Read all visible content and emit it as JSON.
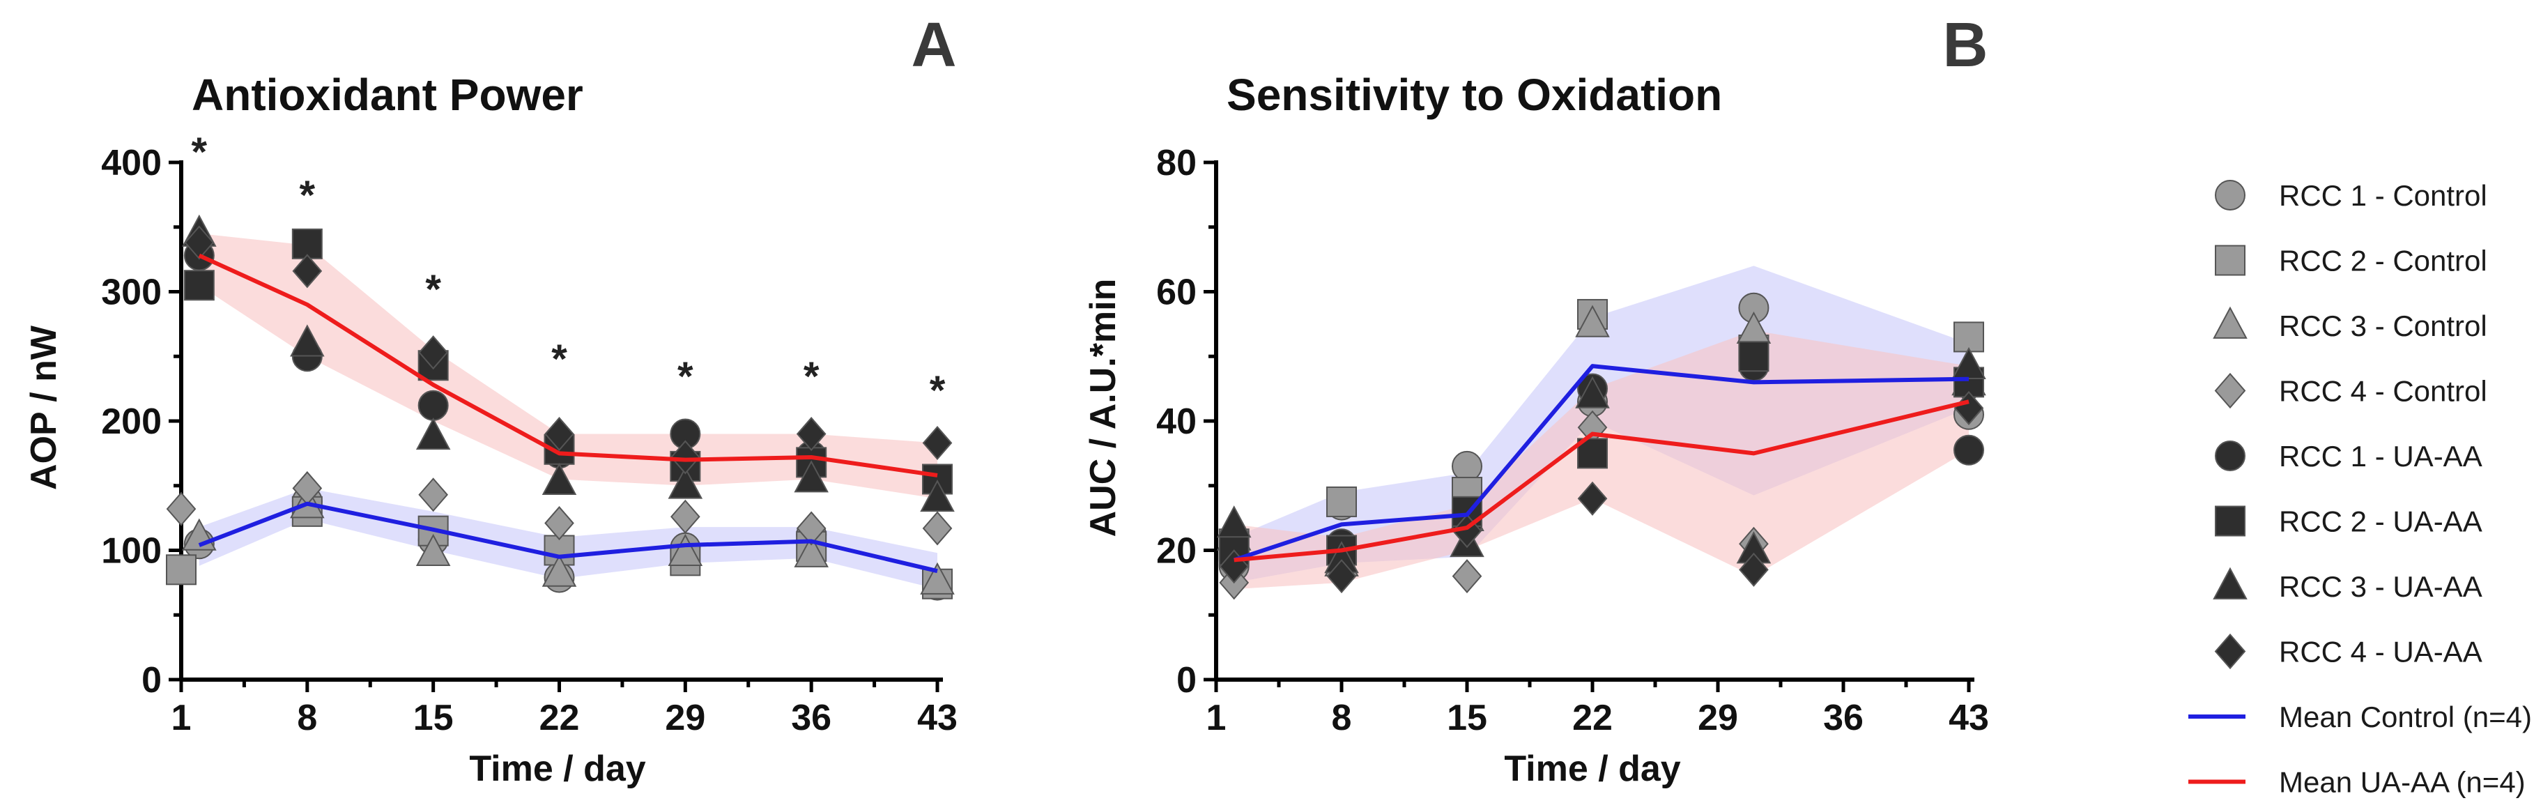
{
  "chart_data": [
    {
      "type": "line",
      "panel_label": "A",
      "title": "Antioxidant Power",
      "xlabel": "Time / day",
      "ylabel": "AOP / nW",
      "xlim": [
        1,
        43
      ],
      "ylim": [
        0,
        400
      ],
      "xticks": [
        1,
        8,
        15,
        22,
        29,
        36,
        43
      ],
      "yticks": [
        0,
        100,
        200,
        300,
        400
      ],
      "significance": [
        {
          "x": 2,
          "label": "*"
        },
        {
          "x": 8,
          "label": "*"
        },
        {
          "x": 15,
          "label": "*"
        },
        {
          "x": 22,
          "label": "*"
        },
        {
          "x": 29,
          "label": "*"
        },
        {
          "x": 36,
          "label": "*"
        },
        {
          "x": 43,
          "label": "*"
        }
      ],
      "x": [
        2,
        8,
        15,
        22,
        29,
        36,
        43
      ],
      "series": [
        {
          "name": "RCC 1 - Control",
          "values": [
            105,
            138,
            108,
            79,
            102,
            112,
            73
          ]
        },
        {
          "name": "RCC 2 - Control",
          "values": [
            85,
            130,
            115,
            100,
            92,
            103,
            74
          ]
        },
        {
          "name": "RCC 3 - Control",
          "values": [
            110,
            135,
            98,
            82,
            98,
            97,
            76
          ]
        },
        {
          "name": "RCC 4 - Control",
          "values": [
            132,
            148,
            143,
            121,
            126,
            117,
            117
          ]
        },
        {
          "name": "RCC 1 - UA-AA",
          "values": [
            328,
            250,
            212,
            175,
            190,
            173,
            155
          ]
        },
        {
          "name": "RCC 2 - UA-AA",
          "values": [
            305,
            337,
            243,
            178,
            165,
            168,
            155
          ]
        },
        {
          "name": "RCC 3 - UA-AA",
          "values": [
            345,
            260,
            188,
            153,
            150,
            155,
            140
          ]
        },
        {
          "name": "RCC 4 - UA-AA",
          "values": [
            338,
            316,
            253,
            190,
            172,
            190,
            183
          ]
        },
        {
          "name": "Mean Control (n=4)",
          "values": [
            104,
            136,
            116,
            95,
            104,
            107,
            84
          ],
          "band_upper": [
            118,
            148,
            130,
            110,
            118,
            118,
            98
          ],
          "band_lower": [
            88,
            124,
            100,
            78,
            90,
            94,
            70
          ]
        },
        {
          "name": "Mean UA-AA (n=4)",
          "values": [
            328,
            290,
            228,
            175,
            170,
            172,
            158
          ],
          "band_upper": [
            345,
            336,
            255,
            190,
            190,
            190,
            183
          ],
          "band_lower": [
            305,
            250,
            200,
            155,
            150,
            155,
            140
          ]
        }
      ],
      "first_point_x_adjust": [
        0,
        0,
        0,
        0,
        0,
        0,
        0
      ],
      "early_points": {
        "RCC 2 - Control": 1,
        "RCC 4 - Control": 1
      }
    },
    {
      "type": "line",
      "panel_label": "B",
      "title": "Sensitivity to Oxidation",
      "xlabel": "Time / day",
      "ylabel": "AUC / A.U.*min",
      "xlim": [
        1,
        43
      ],
      "ylim": [
        0,
        80
      ],
      "xticks": [
        1,
        8,
        15,
        22,
        29,
        36,
        43
      ],
      "yticks": [
        0,
        20,
        40,
        60,
        80
      ],
      "x": [
        2,
        8,
        15,
        22,
        31,
        43
      ],
      "series": [
        {
          "name": "RCC 1 - Control",
          "values": [
            17.5,
            27,
            33,
            43,
            57.5,
            41
          ]
        },
        {
          "name": "RCC 2 - Control",
          "values": [
            21,
            27.5,
            29,
            56.5,
            51,
            53
          ]
        },
        {
          "name": "RCC 3 - Control",
          "values": [
            22,
            18,
            25,
            55,
            54,
            46
          ]
        },
        {
          "name": "RCC 4 - Control",
          "values": [
            15,
            17,
            16,
            39,
            21,
            45
          ]
        },
        {
          "name": "RCC 1 - UA-AA",
          "values": [
            18.5,
            21,
            24,
            45,
            48.5,
            35.5
          ]
        },
        {
          "name": "RCC 2 - UA-AA",
          "values": [
            20,
            20,
            26,
            35,
            50,
            46
          ]
        },
        {
          "name": "RCC 3 - UA-AA",
          "values": [
            24,
            18.5,
            21,
            44,
            20,
            48.5
          ]
        },
        {
          "name": "RCC 4 - UA-AA",
          "values": [
            17.5,
            16,
            23,
            28,
            17,
            42
          ]
        },
        {
          "name": "Mean Control (n=4)",
          "values": [
            18.5,
            24,
            25.5,
            48.5,
            46,
            46.5
          ],
          "band_upper": [
            22,
            29,
            32,
            56,
            64,
            52
          ],
          "band_lower": [
            15,
            18,
            19,
            40,
            28.5,
            42
          ]
        },
        {
          "name": "Mean UA-AA (n=4)",
          "values": [
            18.5,
            20,
            23.5,
            38,
            35,
            43
          ],
          "band_upper": [
            24,
            22,
            27,
            45,
            54,
            48.5
          ],
          "band_lower": [
            14,
            15,
            20,
            28,
            16,
            35.5
          ]
        }
      ]
    }
  ],
  "legend": {
    "position": "right",
    "entries": [
      {
        "label": "RCC 1 - Control",
        "marker": "circle",
        "color": "#9a9a9a"
      },
      {
        "label": "RCC 2 - Control",
        "marker": "square",
        "color": "#9a9a9a"
      },
      {
        "label": "RCC 3 - Control",
        "marker": "triangle",
        "color": "#9a9a9a"
      },
      {
        "label": "RCC 4 - Control",
        "marker": "diamond",
        "color": "#9a9a9a"
      },
      {
        "label": "RCC 1 - UA-AA",
        "marker": "circle",
        "color": "#2e2e2e"
      },
      {
        "label": "RCC 2 - UA-AA",
        "marker": "square",
        "color": "#2e2e2e"
      },
      {
        "label": "RCC 3 - UA-AA",
        "marker": "triangle",
        "color": "#2e2e2e"
      },
      {
        "label": "RCC 4 - UA-AA",
        "marker": "diamond",
        "color": "#2e2e2e"
      },
      {
        "label": "Mean Control (n=4)",
        "marker": "line",
        "color": "#1f1fe0"
      },
      {
        "label": "Mean UA-AA (n=4)",
        "marker": "line",
        "color": "#ee1c1c"
      }
    ]
  },
  "colors": {
    "control_marker": "#9a9a9a",
    "uaaa_marker": "#2e2e2e",
    "mean_control": "#1f1fe0",
    "mean_uaaa": "#ee1c1c",
    "band_control": "#c9c9fa",
    "band_uaaa": "#f9c4c4"
  }
}
